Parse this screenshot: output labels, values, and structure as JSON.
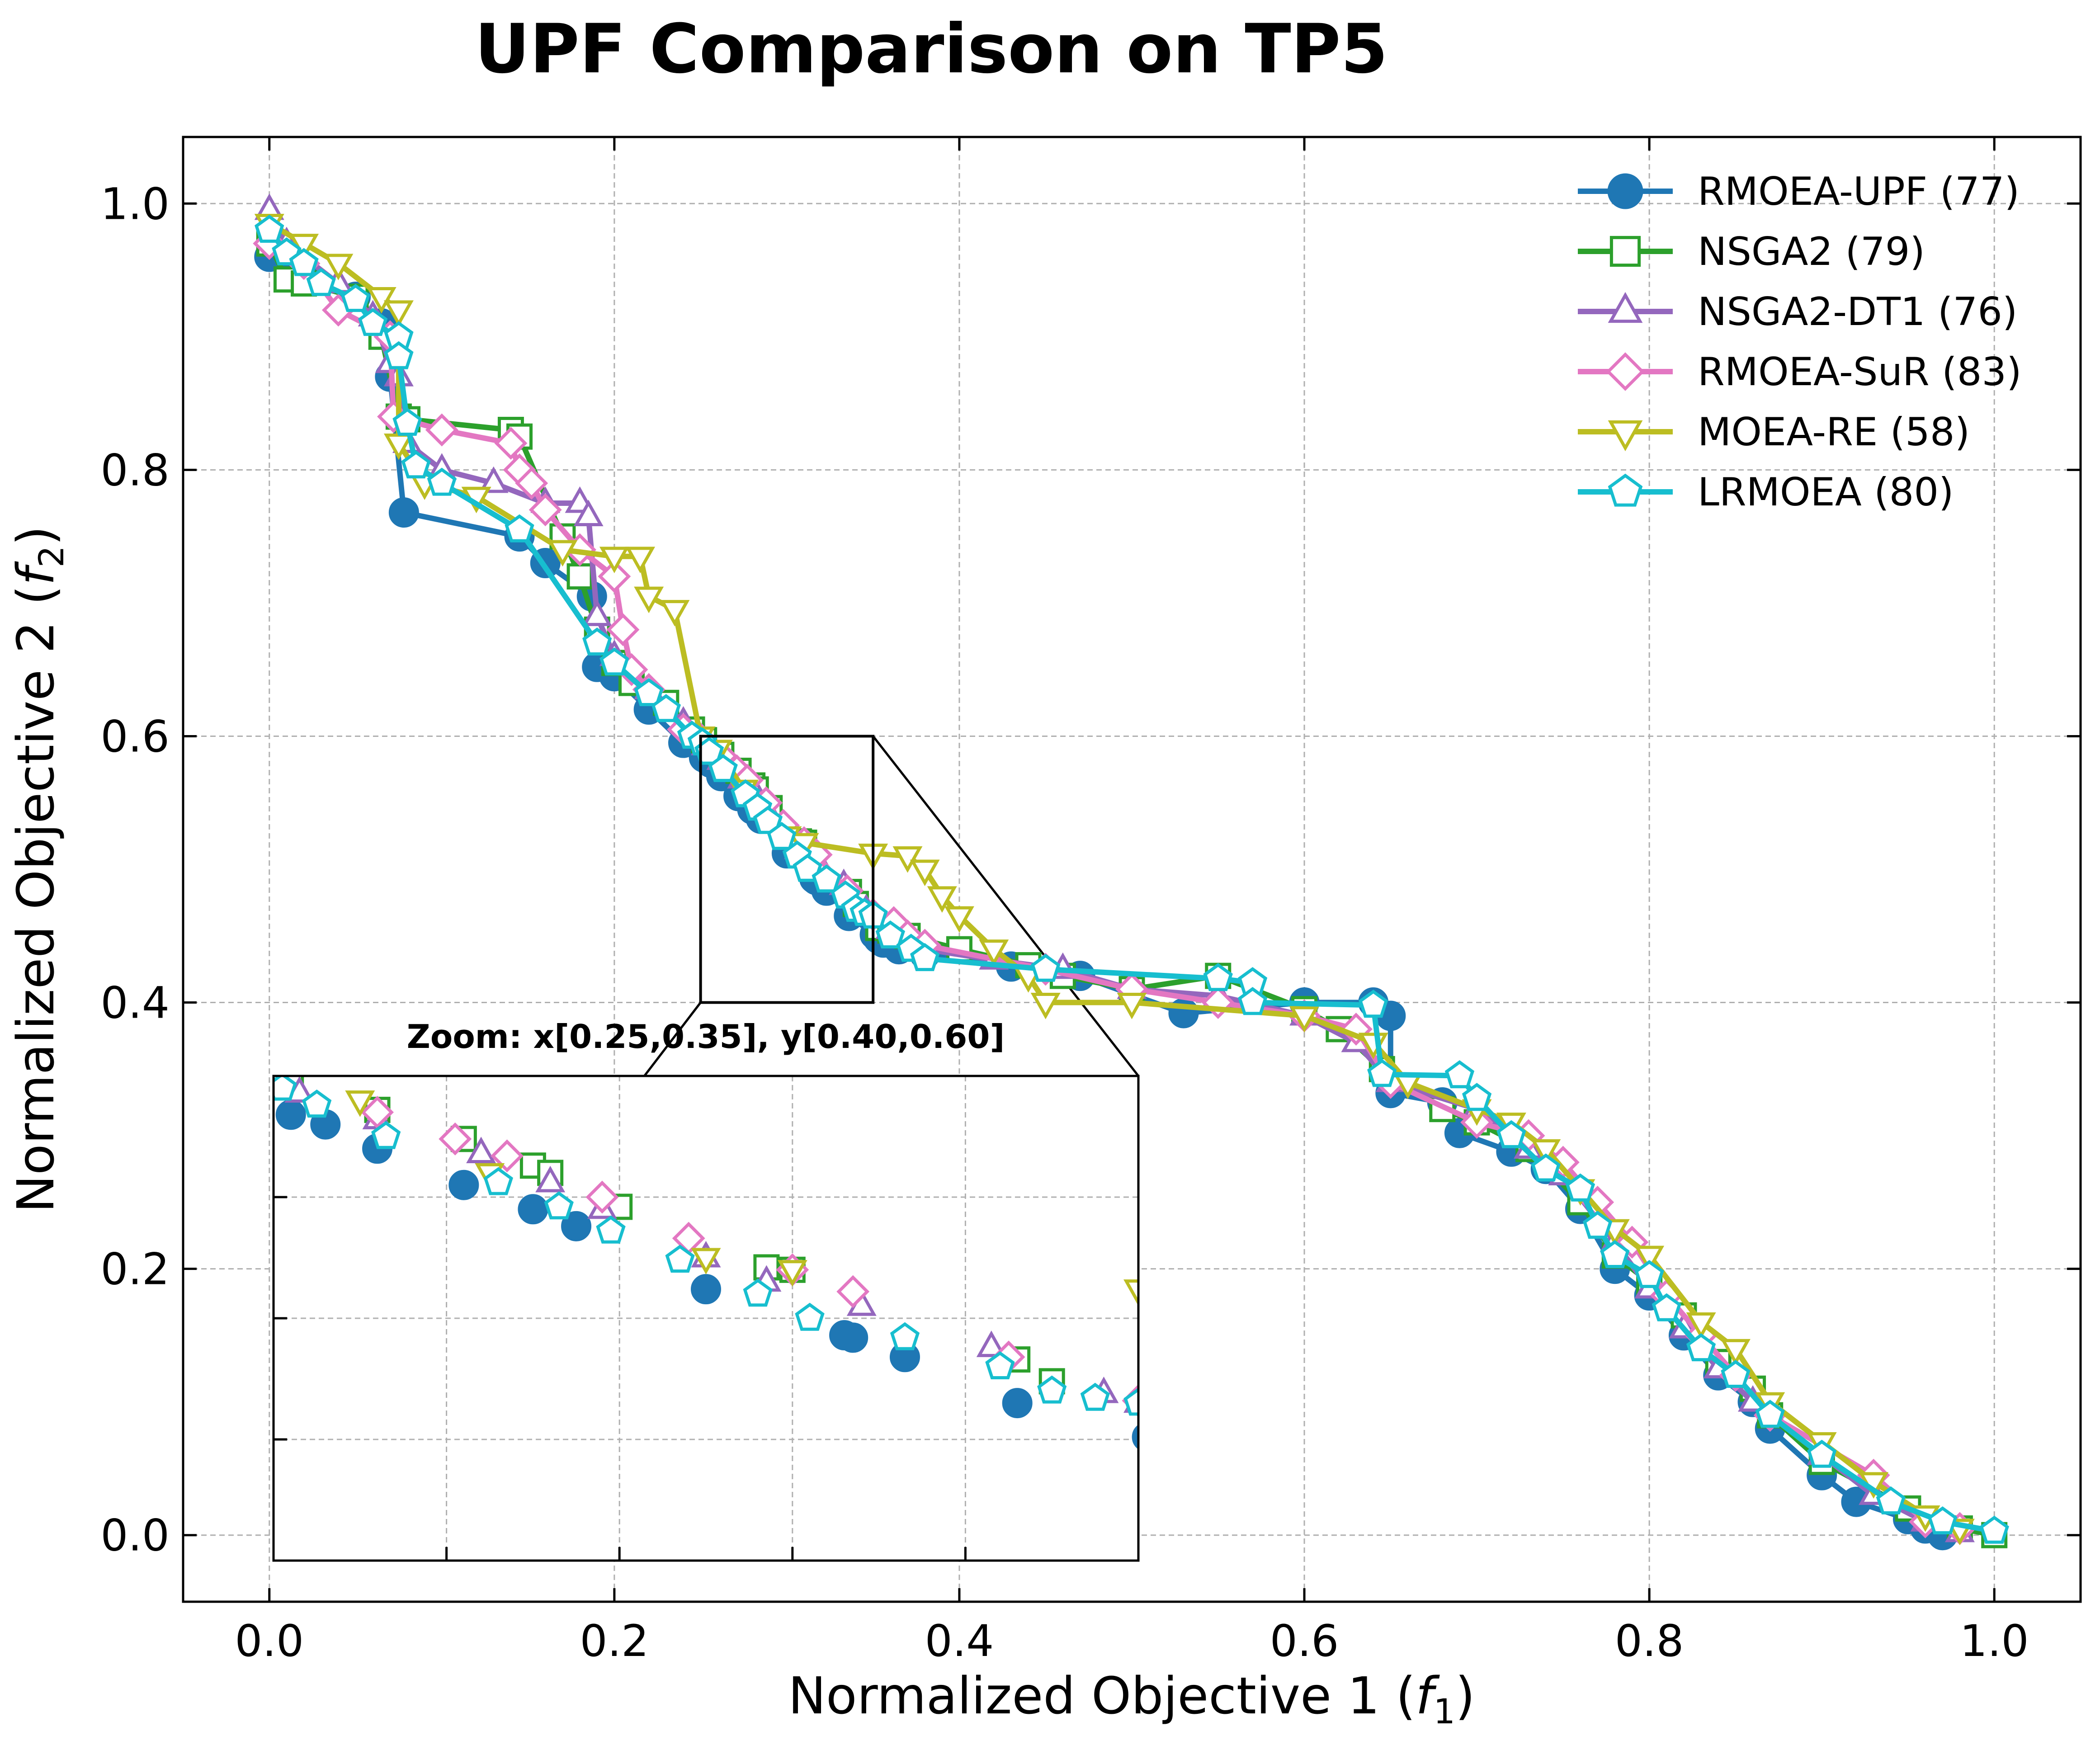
{
  "chart_data": {
    "type": "line",
    "title": "UPF Comparison on TP5",
    "xlabel_main": "Normalized Objective 1 (",
    "xlabel_var": "f",
    "xlabel_sub": "1",
    "xlabel_end": ")",
    "ylabel_main": "Normalized Objective 2 (",
    "ylabel_var": "f",
    "ylabel_sub": "2",
    "ylabel_end": ")",
    "xlim": [
      -0.05,
      1.05
    ],
    "ylim": [
      -0.05,
      1.05
    ],
    "xticks": [
      0.0,
      0.2,
      0.4,
      0.6,
      0.8,
      1.0
    ],
    "yticks": [
      0.0,
      0.2,
      0.4,
      0.6,
      0.8,
      1.0
    ],
    "xtick_labels": [
      "0.0",
      "0.2",
      "0.4",
      "0.6",
      "0.8",
      "1.0"
    ],
    "ytick_labels": [
      "0.0",
      "0.2",
      "0.4",
      "0.6",
      "0.8",
      "1.0"
    ],
    "grid": true,
    "legend_position": "top-right",
    "zoom": {
      "label": "Zoom: x[0.25,0.35], y[0.40,0.60]",
      "xlim": [
        0.25,
        0.35
      ],
      "ylim": [
        0.4,
        0.6
      ]
    },
    "series": [
      {
        "name": "RMOEA-UPF (77)",
        "color": "#1f77b4",
        "marker": "circle",
        "filled": true,
        "points": [
          [
            0.0,
            0.96
          ],
          [
            0.02,
            0.945
          ],
          [
            0.05,
            0.93
          ],
          [
            0.065,
            0.91
          ],
          [
            0.07,
            0.87
          ],
          [
            0.078,
            0.768
          ],
          [
            0.145,
            0.75
          ],
          [
            0.16,
            0.73
          ],
          [
            0.187,
            0.705
          ],
          [
            0.19,
            0.652
          ],
          [
            0.2,
            0.645
          ],
          [
            0.22,
            0.62
          ],
          [
            0.24,
            0.595
          ],
          [
            0.252,
            0.584
          ],
          [
            0.256,
            0.58
          ],
          [
            0.262,
            0.57
          ],
          [
            0.272,
            0.555
          ],
          [
            0.28,
            0.545
          ],
          [
            0.285,
            0.538
          ],
          [
            0.3,
            0.512
          ],
          [
            0.316,
            0.493
          ],
          [
            0.317,
            0.492
          ],
          [
            0.323,
            0.484
          ],
          [
            0.336,
            0.465
          ],
          [
            0.351,
            0.451
          ],
          [
            0.353,
            0.448
          ],
          [
            0.356,
            0.445
          ],
          [
            0.365,
            0.44
          ],
          [
            0.38,
            0.436
          ],
          [
            0.43,
            0.427
          ],
          [
            0.47,
            0.42
          ],
          [
            0.53,
            0.392
          ],
          [
            0.6,
            0.4
          ],
          [
            0.64,
            0.4
          ],
          [
            0.65,
            0.39
          ],
          [
            0.65,
            0.332
          ],
          [
            0.68,
            0.325
          ],
          [
            0.69,
            0.302
          ],
          [
            0.72,
            0.288
          ],
          [
            0.74,
            0.275
          ],
          [
            0.76,
            0.245
          ],
          [
            0.78,
            0.2
          ],
          [
            0.8,
            0.18
          ],
          [
            0.82,
            0.15
          ],
          [
            0.84,
            0.12
          ],
          [
            0.86,
            0.1
          ],
          [
            0.87,
            0.08
          ],
          [
            0.9,
            0.045
          ],
          [
            0.92,
            0.025
          ],
          [
            0.95,
            0.012
          ],
          [
            0.96,
            0.005
          ],
          [
            0.97,
            0.0
          ]
        ]
      },
      {
        "name": "NSGA2 (79)",
        "color": "#2ca02c",
        "marker": "square",
        "filled": false,
        "points": [
          [
            0.0,
            0.97
          ],
          [
            0.01,
            0.943
          ],
          [
            0.02,
            0.94
          ],
          [
            0.05,
            0.93
          ],
          [
            0.065,
            0.9
          ],
          [
            0.075,
            0.84
          ],
          [
            0.08,
            0.838
          ],
          [
            0.14,
            0.83
          ],
          [
            0.145,
            0.825
          ],
          [
            0.17,
            0.75
          ],
          [
            0.18,
            0.72
          ],
          [
            0.19,
            0.68
          ],
          [
            0.2,
            0.655
          ],
          [
            0.21,
            0.64
          ],
          [
            0.23,
            0.625
          ],
          [
            0.245,
            0.605
          ],
          [
            0.252,
            0.597
          ],
          [
            0.262,
            0.586
          ],
          [
            0.272,
            0.574
          ],
          [
            0.28,
            0.563
          ],
          [
            0.282,
            0.56
          ],
          [
            0.29,
            0.546
          ],
          [
            0.307,
            0.521
          ],
          [
            0.31,
            0.52
          ],
          [
            0.336,
            0.483
          ],
          [
            0.34,
            0.474
          ],
          [
            0.353,
            0.456
          ],
          [
            0.36,
            0.454
          ],
          [
            0.37,
            0.45
          ],
          [
            0.4,
            0.44
          ],
          [
            0.44,
            0.428
          ],
          [
            0.46,
            0.42
          ],
          [
            0.5,
            0.41
          ],
          [
            0.55,
            0.42
          ],
          [
            0.6,
            0.395
          ],
          [
            0.62,
            0.38
          ],
          [
            0.645,
            0.35
          ],
          [
            0.68,
            0.32
          ],
          [
            0.7,
            0.31
          ],
          [
            0.73,
            0.29
          ],
          [
            0.76,
            0.25
          ],
          [
            0.78,
            0.21
          ],
          [
            0.8,
            0.19
          ],
          [
            0.82,
            0.165
          ],
          [
            0.84,
            0.13
          ],
          [
            0.86,
            0.11
          ],
          [
            0.87,
            0.09
          ],
          [
            0.9,
            0.055
          ],
          [
            0.95,
            0.02
          ],
          [
            0.98,
            0.005
          ],
          [
            1.0,
            0.0
          ]
        ]
      },
      {
        "name": "NSGA2-DT1 (76)",
        "color": "#9467bd",
        "marker": "triangle-up",
        "filled": false,
        "points": [
          [
            0.0,
            0.995
          ],
          [
            0.01,
            0.97
          ],
          [
            0.04,
            0.94
          ],
          [
            0.06,
            0.915
          ],
          [
            0.07,
            0.88
          ],
          [
            0.075,
            0.87
          ],
          [
            0.08,
            0.82
          ],
          [
            0.1,
            0.8
          ],
          [
            0.13,
            0.79
          ],
          [
            0.16,
            0.775
          ],
          [
            0.18,
            0.775
          ],
          [
            0.185,
            0.765
          ],
          [
            0.19,
            0.69
          ],
          [
            0.2,
            0.66
          ],
          [
            0.22,
            0.635
          ],
          [
            0.24,
            0.61
          ],
          [
            0.253,
            0.593
          ],
          [
            0.262,
            0.582
          ],
          [
            0.274,
            0.568
          ],
          [
            0.282,
            0.556
          ],
          [
            0.288,
            0.545
          ],
          [
            0.3,
            0.525
          ],
          [
            0.307,
            0.515
          ],
          [
            0.318,
            0.505
          ],
          [
            0.333,
            0.488
          ],
          [
            0.346,
            0.469
          ],
          [
            0.35,
            0.465
          ],
          [
            0.36,
            0.455
          ],
          [
            0.38,
            0.44
          ],
          [
            0.42,
            0.432
          ],
          [
            0.46,
            0.425
          ],
          [
            0.5,
            0.41
          ],
          [
            0.55,
            0.405
          ],
          [
            0.6,
            0.39
          ],
          [
            0.63,
            0.37
          ],
          [
            0.65,
            0.34
          ],
          [
            0.7,
            0.32
          ],
          [
            0.73,
            0.29
          ],
          [
            0.75,
            0.27
          ],
          [
            0.78,
            0.22
          ],
          [
            0.8,
            0.185
          ],
          [
            0.82,
            0.155
          ],
          [
            0.84,
            0.125
          ],
          [
            0.86,
            0.1
          ],
          [
            0.9,
            0.06
          ],
          [
            0.93,
            0.03
          ],
          [
            0.96,
            0.01
          ],
          [
            0.98,
            0.002
          ]
        ]
      },
      {
        "name": "RMOEA-SuR (83)",
        "color": "#e377c2",
        "marker": "diamond",
        "filled": false,
        "points": [
          [
            0.0,
            0.97
          ],
          [
            0.02,
            0.955
          ],
          [
            0.04,
            0.92
          ],
          [
            0.07,
            0.9
          ],
          [
            0.072,
            0.84
          ],
          [
            0.1,
            0.83
          ],
          [
            0.14,
            0.82
          ],
          [
            0.145,
            0.8
          ],
          [
            0.152,
            0.79
          ],
          [
            0.16,
            0.77
          ],
          [
            0.18,
            0.74
          ],
          [
            0.2,
            0.72
          ],
          [
            0.205,
            0.68
          ],
          [
            0.21,
            0.65
          ],
          [
            0.22,
            0.635
          ],
          [
            0.24,
            0.605
          ],
          [
            0.25,
            0.598
          ],
          [
            0.262,
            0.585
          ],
          [
            0.271,
            0.574
          ],
          [
            0.277,
            0.567
          ],
          [
            0.288,
            0.55
          ],
          [
            0.298,
            0.533
          ],
          [
            0.31,
            0.52
          ],
          [
            0.317,
            0.511
          ],
          [
            0.335,
            0.484
          ],
          [
            0.35,
            0.466
          ],
          [
            0.362,
            0.46
          ],
          [
            0.37,
            0.45
          ],
          [
            0.38,
            0.443
          ],
          [
            0.45,
            0.425
          ],
          [
            0.5,
            0.41
          ],
          [
            0.55,
            0.4
          ],
          [
            0.6,
            0.39
          ],
          [
            0.63,
            0.38
          ],
          [
            0.65,
            0.34
          ],
          [
            0.7,
            0.31
          ],
          [
            0.73,
            0.3
          ],
          [
            0.75,
            0.28
          ],
          [
            0.77,
            0.25
          ],
          [
            0.79,
            0.22
          ],
          [
            0.81,
            0.18
          ],
          [
            0.83,
            0.15
          ],
          [
            0.85,
            0.12
          ],
          [
            0.87,
            0.09
          ],
          [
            0.93,
            0.045
          ],
          [
            0.96,
            0.01
          ],
          [
            0.98,
            0.005
          ]
        ]
      },
      {
        "name": "MOEA-RE (58)",
        "color": "#bcbd22",
        "marker": "triangle-down",
        "filled": false,
        "points": [
          [
            0.0,
            0.985
          ],
          [
            0.02,
            0.97
          ],
          [
            0.04,
            0.955
          ],
          [
            0.065,
            0.93
          ],
          [
            0.075,
            0.92
          ],
          [
            0.075,
            0.82
          ],
          [
            0.09,
            0.79
          ],
          [
            0.12,
            0.78
          ],
          [
            0.17,
            0.74
          ],
          [
            0.2,
            0.735
          ],
          [
            0.215,
            0.735
          ],
          [
            0.22,
            0.705
          ],
          [
            0.235,
            0.695
          ],
          [
            0.25,
            0.6
          ],
          [
            0.26,
            0.59
          ],
          [
            0.275,
            0.56
          ],
          [
            0.3,
            0.525
          ],
          [
            0.31,
            0.52
          ],
          [
            0.35,
            0.512
          ],
          [
            0.37,
            0.51
          ],
          [
            0.38,
            0.5
          ],
          [
            0.39,
            0.48
          ],
          [
            0.4,
            0.465
          ],
          [
            0.42,
            0.44
          ],
          [
            0.44,
            0.42
          ],
          [
            0.45,
            0.4
          ],
          [
            0.5,
            0.4
          ],
          [
            0.6,
            0.39
          ],
          [
            0.64,
            0.37
          ],
          [
            0.66,
            0.34
          ],
          [
            0.7,
            0.32
          ],
          [
            0.72,
            0.31
          ],
          [
            0.74,
            0.29
          ],
          [
            0.76,
            0.26
          ],
          [
            0.78,
            0.23
          ],
          [
            0.8,
            0.21
          ],
          [
            0.83,
            0.16
          ],
          [
            0.85,
            0.14
          ],
          [
            0.87,
            0.1
          ],
          [
            0.9,
            0.07
          ],
          [
            0.93,
            0.04
          ],
          [
            0.96,
            0.015
          ],
          [
            0.98,
            0.005
          ]
        ]
      },
      {
        "name": "LRMOEA (80)",
        "color": "#17becf",
        "marker": "pentagon",
        "filled": false,
        "points": [
          [
            0.0,
            0.98
          ],
          [
            0.01,
            0.963
          ],
          [
            0.02,
            0.955
          ],
          [
            0.03,
            0.94
          ],
          [
            0.05,
            0.928
          ],
          [
            0.06,
            0.91
          ],
          [
            0.075,
            0.9
          ],
          [
            0.075,
            0.885
          ],
          [
            0.08,
            0.835
          ],
          [
            0.085,
            0.803
          ],
          [
            0.1,
            0.79
          ],
          [
            0.145,
            0.755
          ],
          [
            0.19,
            0.67
          ],
          [
            0.2,
            0.655
          ],
          [
            0.22,
            0.632
          ],
          [
            0.23,
            0.62
          ],
          [
            0.245,
            0.6
          ],
          [
            0.251,
            0.595
          ],
          [
            0.255,
            0.588
          ],
          [
            0.263,
            0.575
          ],
          [
            0.276,
            0.556
          ],
          [
            0.283,
            0.546
          ],
          [
            0.289,
            0.536
          ],
          [
            0.297,
            0.524
          ],
          [
            0.306,
            0.51
          ],
          [
            0.312,
            0.5
          ],
          [
            0.323,
            0.492
          ],
          [
            0.334,
            0.48
          ],
          [
            0.34,
            0.47
          ],
          [
            0.345,
            0.467
          ],
          [
            0.35,
            0.465
          ],
          [
            0.36,
            0.45
          ],
          [
            0.372,
            0.44
          ],
          [
            0.38,
            0.433
          ],
          [
            0.45,
            0.425
          ],
          [
            0.55,
            0.418
          ],
          [
            0.57,
            0.415
          ],
          [
            0.57,
            0.4
          ],
          [
            0.64,
            0.398
          ],
          [
            0.645,
            0.346
          ],
          [
            0.69,
            0.345
          ],
          [
            0.7,
            0.328
          ],
          [
            0.72,
            0.3
          ],
          [
            0.74,
            0.275
          ],
          [
            0.76,
            0.26
          ],
          [
            0.77,
            0.232
          ],
          [
            0.78,
            0.21
          ],
          [
            0.8,
            0.195
          ],
          [
            0.81,
            0.17
          ],
          [
            0.83,
            0.14
          ],
          [
            0.85,
            0.12
          ],
          [
            0.87,
            0.09
          ],
          [
            0.9,
            0.06
          ],
          [
            0.94,
            0.025
          ],
          [
            0.97,
            0.01
          ],
          [
            1.0,
            0.003
          ]
        ]
      }
    ]
  }
}
